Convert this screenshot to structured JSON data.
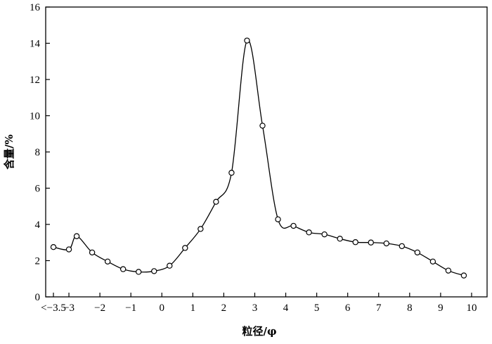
{
  "chart_data": {
    "type": "line",
    "title": "",
    "xlabel": "粒径/φ",
    "ylabel": "含量/%",
    "xlim": [
      -3.75,
      10.5
    ],
    "ylim": [
      0,
      16
    ],
    "xticks": [
      {
        "value": -3.5,
        "label": "<−3.5"
      },
      {
        "value": -3,
        "label": "−3"
      },
      {
        "value": -2,
        "label": "−2"
      },
      {
        "value": -1,
        "label": "−1"
      },
      {
        "value": 0,
        "label": "0"
      },
      {
        "value": 1,
        "label": "1"
      },
      {
        "value": 2,
        "label": "2"
      },
      {
        "value": 3,
        "label": "3"
      },
      {
        "value": 4,
        "label": "4"
      },
      {
        "value": 5,
        "label": "5"
      },
      {
        "value": 6,
        "label": "6"
      },
      {
        "value": 7,
        "label": "7"
      },
      {
        "value": 8,
        "label": "8"
      },
      {
        "value": 9,
        "label": "9"
      },
      {
        "value": 10,
        "label": "10"
      }
    ],
    "yticks": [
      {
        "value": 0,
        "label": "0"
      },
      {
        "value": 2,
        "label": "2"
      },
      {
        "value": 4,
        "label": "4"
      },
      {
        "value": 6,
        "label": "6"
      },
      {
        "value": 8,
        "label": "8"
      },
      {
        "value": 10,
        "label": "10"
      },
      {
        "value": 12,
        "label": "12"
      },
      {
        "value": 14,
        "label": "14"
      },
      {
        "value": 16,
        "label": "16"
      }
    ],
    "grid": false,
    "series": [
      {
        "color": "#000000",
        "marker": "open-circle",
        "x": [
          -3.5,
          -3.0,
          -2.75,
          -2.25,
          -1.75,
          -1.25,
          -0.75,
          -0.25,
          0.25,
          0.75,
          1.25,
          1.75,
          2.25,
          2.75,
          3.25,
          3.75,
          4.25,
          4.75,
          5.25,
          5.75,
          6.25,
          6.75,
          7.25,
          7.75,
          8.25,
          8.75,
          9.25,
          9.75
        ],
        "y": [
          2.75,
          2.62,
          3.35,
          2.45,
          1.95,
          1.53,
          1.38,
          1.42,
          1.72,
          2.7,
          3.75,
          5.25,
          6.85,
          14.15,
          9.45,
          4.28,
          3.92,
          3.56,
          3.45,
          3.21,
          3.02,
          3.0,
          2.95,
          2.8,
          2.45,
          1.95,
          1.45,
          1.18
        ]
      }
    ]
  }
}
